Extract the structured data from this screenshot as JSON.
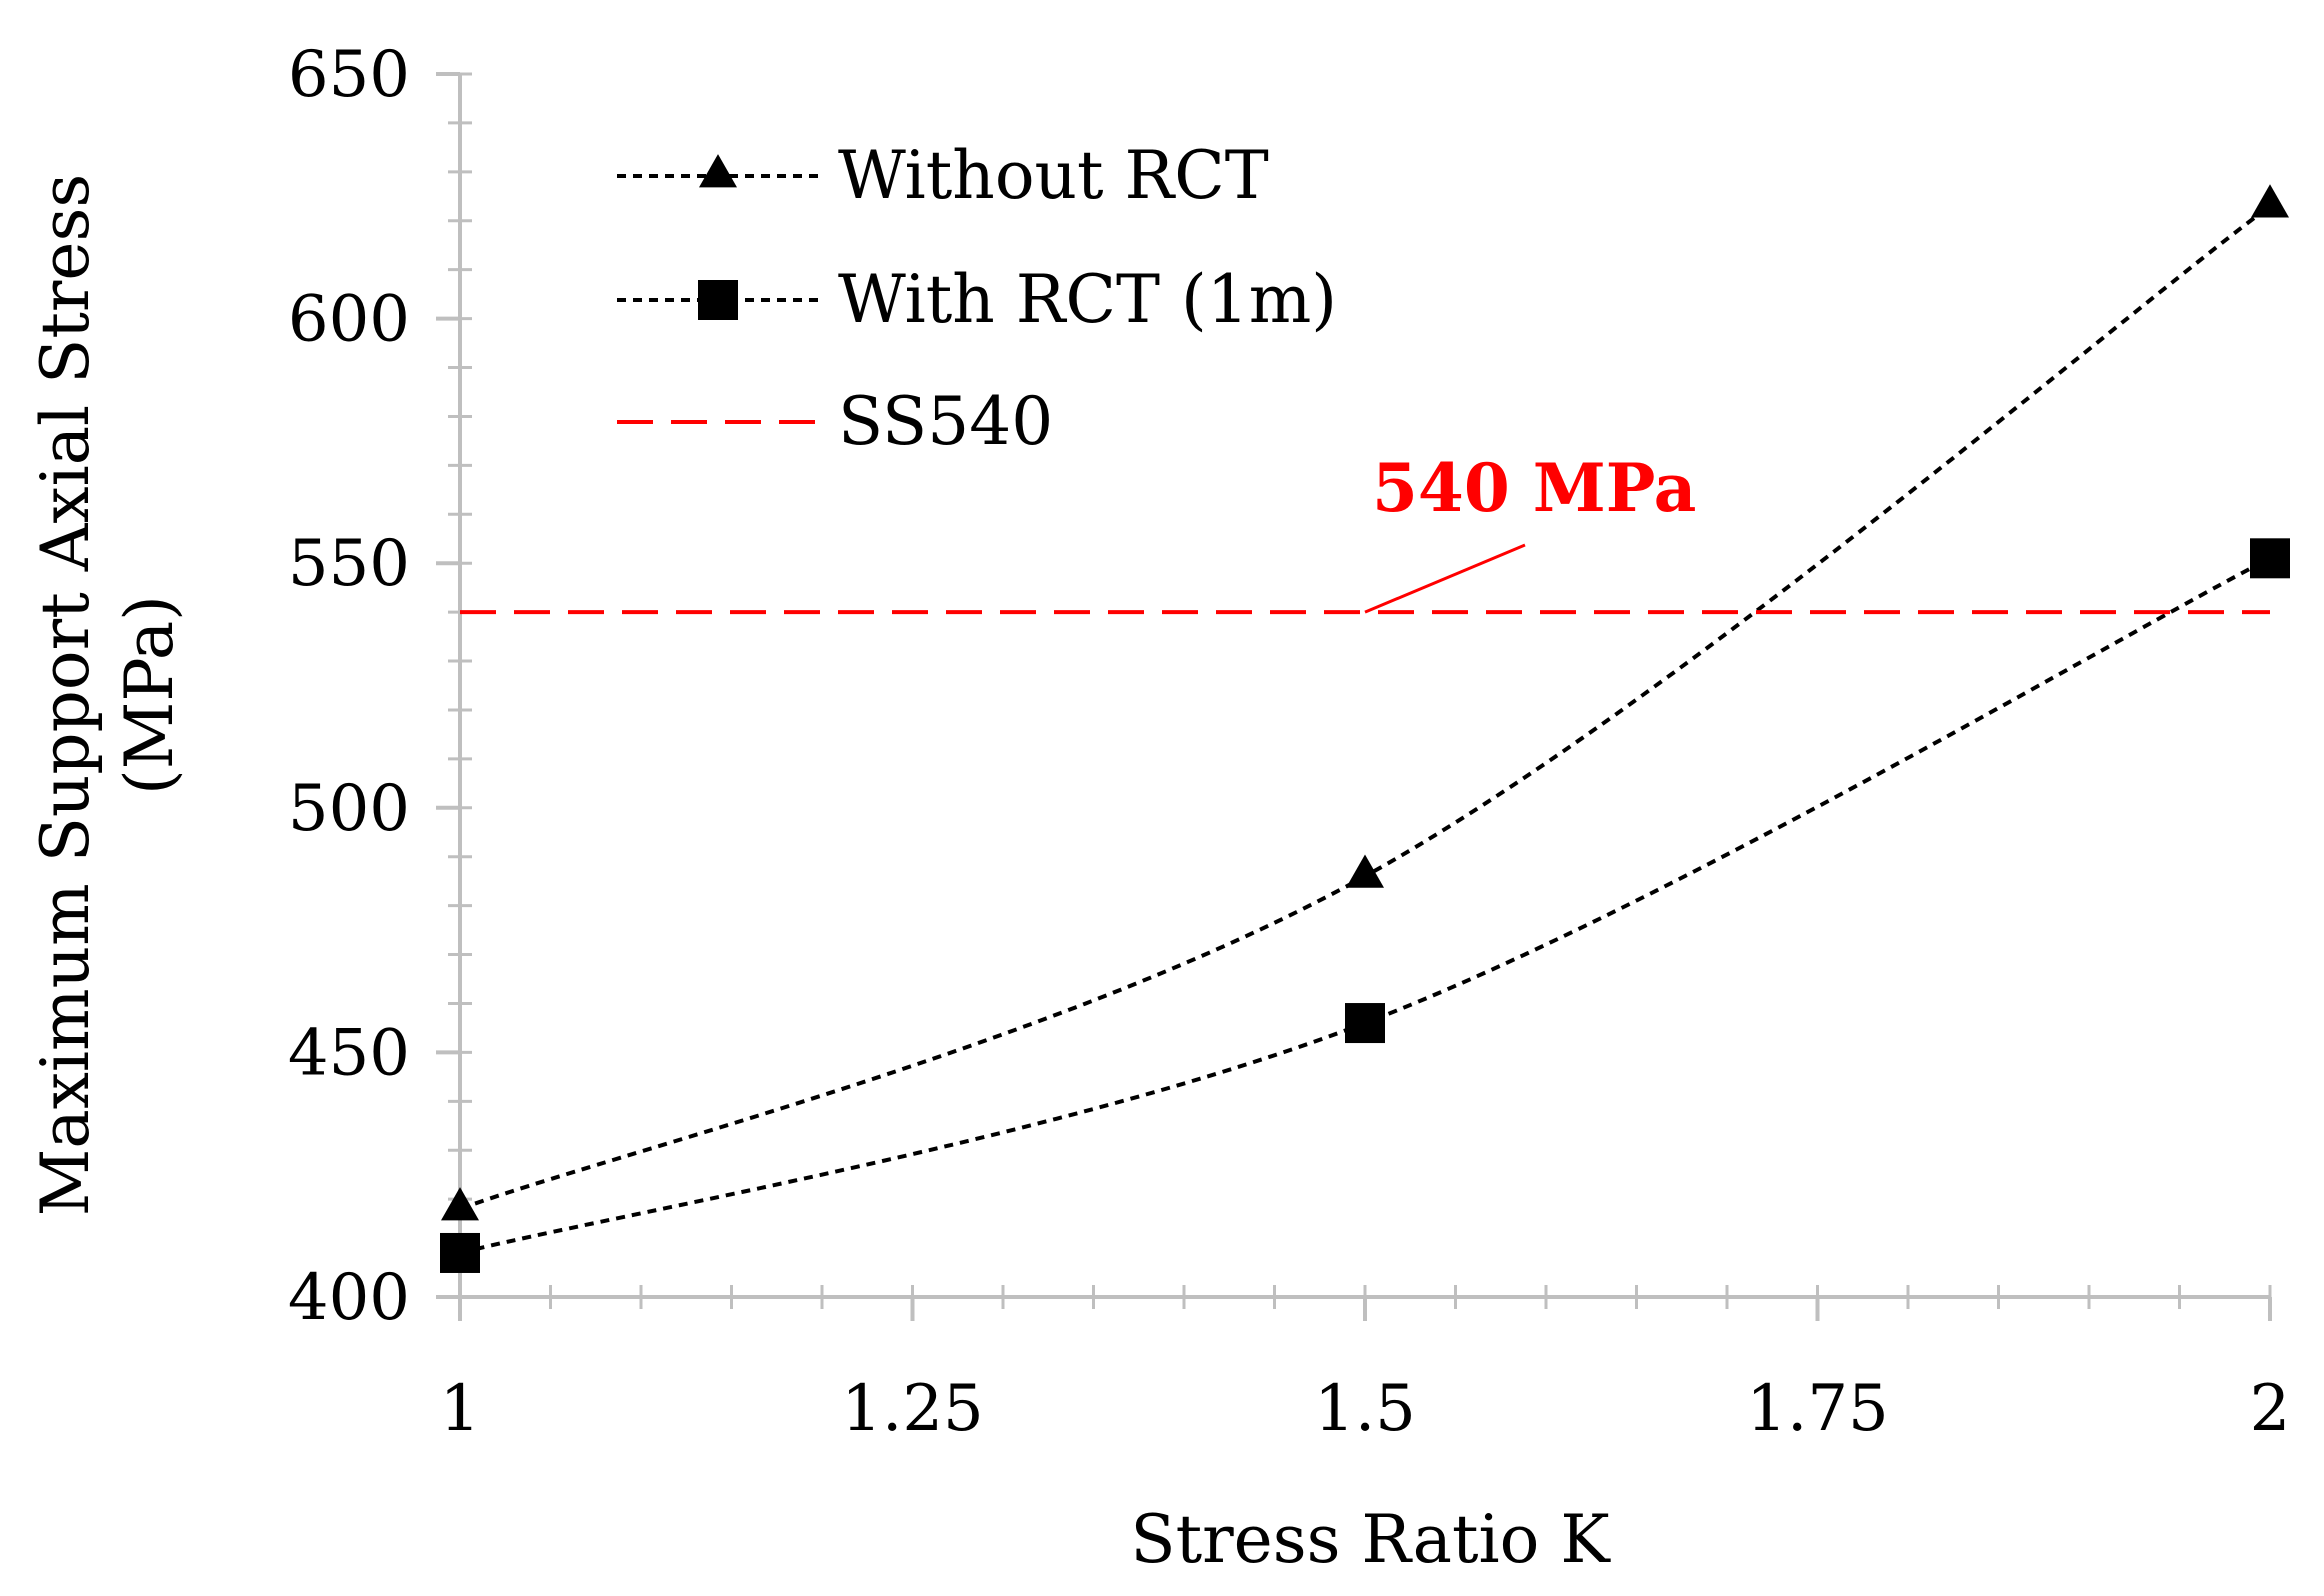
{
  "chart_data": {
    "type": "line",
    "title": "",
    "xlabel": "Stress Ratio K",
    "ylabel_line1": "Maximum Support  Axial Stress",
    "ylabel_line2": "(MPa)",
    "xlim": [
      1,
      2
    ],
    "ylim": [
      400,
      650
    ],
    "x_ticks": [
      {
        "value": 1,
        "label": "1"
      },
      {
        "value": 1.25,
        "label": "1.25"
      },
      {
        "value": 1.5,
        "label": "1.5"
      },
      {
        "value": 1.75,
        "label": "1.75"
      },
      {
        "value": 2,
        "label": "2"
      }
    ],
    "x_minor_step": 0.05,
    "y_ticks": [
      {
        "value": 400,
        "label": "400"
      },
      {
        "value": 450,
        "label": "450"
      },
      {
        "value": 500,
        "label": "500"
      },
      {
        "value": 550,
        "label": "550"
      },
      {
        "value": 600,
        "label": "600"
      },
      {
        "value": 650,
        "label": "650"
      }
    ],
    "y_minor_step": 10,
    "grid": false,
    "legend_position": "top-left",
    "series": [
      {
        "name": "Without RCT",
        "marker": "triangle",
        "line_style": "dotted",
        "color": "#000000",
        "x": [
          1,
          1.5,
          2
        ],
        "y": [
          418,
          486,
          623
        ]
      },
      {
        "name": "With RCT (1m)",
        "marker": "square",
        "line_style": "dotted",
        "color": "#000000",
        "x": [
          1,
          1.5,
          2
        ],
        "y": [
          409,
          456,
          551
        ]
      },
      {
        "name": "SS540",
        "marker": "none",
        "line_style": "dashed",
        "color": "#ff0000",
        "x": [
          1,
          2
        ],
        "y": [
          540,
          540
        ]
      }
    ],
    "annotation": {
      "text": "540 MPa",
      "color": "#ff0000",
      "points_to": {
        "x": 1.5,
        "y": 540
      }
    }
  }
}
